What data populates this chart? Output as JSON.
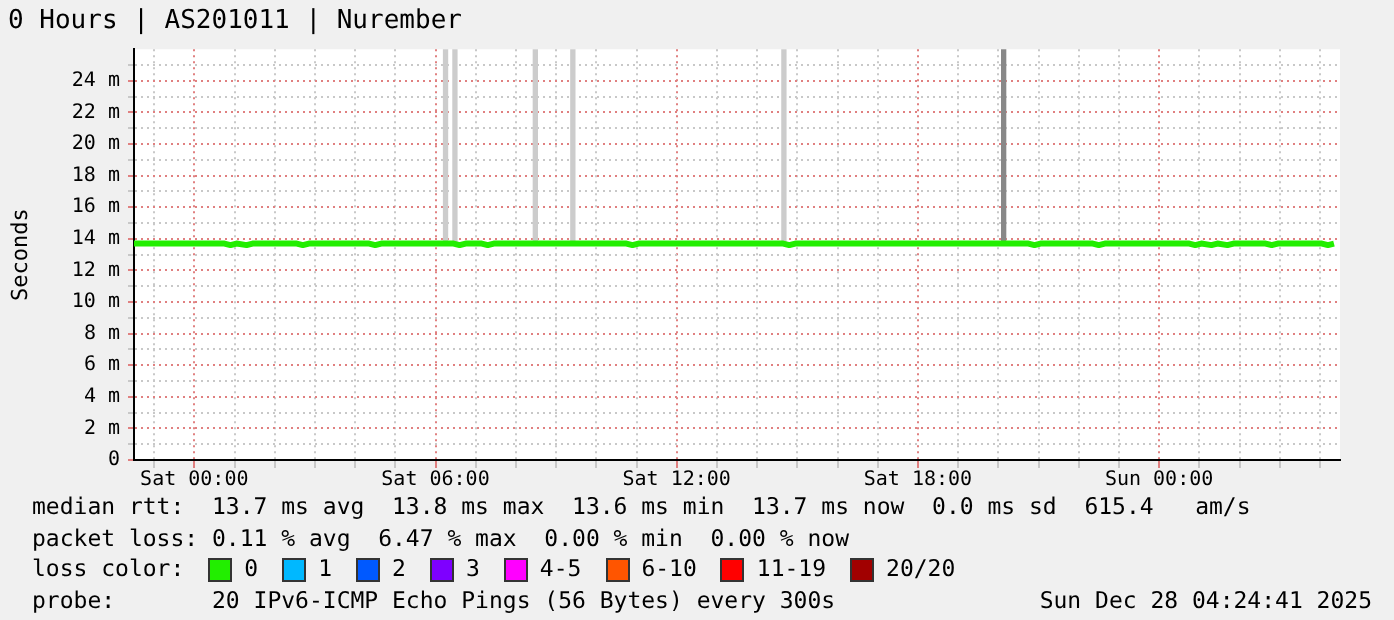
{
  "chart_data": {
    "type": "line",
    "title": "0 Hours | AS201011 | Nurember",
    "ylabel": "Seconds",
    "xlim": [
      "2025-12-26T22:30",
      "2025-12-28T04:30"
    ],
    "xticks": [
      {
        "value": "2025-12-26T23:00",
        "label": null
      },
      {
        "value": "2025-12-27T00:00",
        "label": "Sat 00:00"
      },
      {
        "value": "2025-12-27T01:00",
        "label": null
      },
      {
        "value": "2025-12-27T02:00",
        "label": null
      },
      {
        "value": "2025-12-27T03:00",
        "label": null
      },
      {
        "value": "2025-12-27T04:00",
        "label": null
      },
      {
        "value": "2025-12-27T05:00",
        "label": null
      },
      {
        "value": "2025-12-27T06:00",
        "label": "Sat 06:00"
      },
      {
        "value": "2025-12-27T07:00",
        "label": null
      },
      {
        "value": "2025-12-27T08:00",
        "label": null
      },
      {
        "value": "2025-12-27T09:00",
        "label": null
      },
      {
        "value": "2025-12-27T10:00",
        "label": null
      },
      {
        "value": "2025-12-27T11:00",
        "label": null
      },
      {
        "value": "2025-12-27T12:00",
        "label": "Sat 12:00"
      },
      {
        "value": "2025-12-27T13:00",
        "label": null
      },
      {
        "value": "2025-12-27T14:00",
        "label": null
      },
      {
        "value": "2025-12-27T15:00",
        "label": null
      },
      {
        "value": "2025-12-27T16:00",
        "label": null
      },
      {
        "value": "2025-12-27T17:00",
        "label": null
      },
      {
        "value": "2025-12-27T18:00",
        "label": "Sat 18:00"
      },
      {
        "value": "2025-12-27T19:00",
        "label": null
      },
      {
        "value": "2025-12-27T20:00",
        "label": null
      },
      {
        "value": "2025-12-27T21:00",
        "label": null
      },
      {
        "value": "2025-12-27T22:00",
        "label": null
      },
      {
        "value": "2025-12-27T23:00",
        "label": null
      },
      {
        "value": "2025-12-28T00:00",
        "label": "Sun 00:00"
      },
      {
        "value": "2025-12-28T01:00",
        "label": null
      },
      {
        "value": "2025-12-28T02:00",
        "label": null
      },
      {
        "value": "2025-12-28T03:00",
        "label": null
      },
      {
        "value": "2025-12-28T04:00",
        "label": null
      }
    ],
    "ylim": [
      0,
      26
    ],
    "yticks": [
      0,
      {
        "value": 1,
        "label": null
      },
      {
        "value": 2,
        "label": "2 m"
      },
      {
        "value": 3,
        "label": null
      },
      {
        "value": 4,
        "label": "4 m"
      },
      {
        "value": 5,
        "label": null
      },
      {
        "value": 6,
        "label": "6 m"
      },
      {
        "value": 7,
        "label": null
      },
      {
        "value": 8,
        "label": "8 m"
      },
      {
        "value": 9,
        "label": null
      },
      {
        "value": 10,
        "label": "10 m"
      },
      {
        "value": 11,
        "label": null
      },
      {
        "value": 12,
        "label": "12 m"
      },
      {
        "value": 13,
        "label": null
      },
      {
        "value": 14,
        "label": "14 m"
      },
      {
        "value": 15,
        "label": null
      },
      {
        "value": 16,
        "label": "16 m"
      },
      {
        "value": 17,
        "label": null
      },
      {
        "value": 18,
        "label": "18 m"
      },
      {
        "value": 19,
        "label": null
      },
      {
        "value": 20,
        "label": "20 m"
      },
      {
        "value": 21,
        "label": null
      },
      {
        "value": 22,
        "label": "22 m"
      },
      {
        "value": 23,
        "label": null
      },
      {
        "value": 24,
        "label": "24 m"
      },
      {
        "value": 25,
        "label": null
      }
    ],
    "grid": true,
    "legend": "bottom",
    "line_style": "solid",
    "marker": "none",
    "series": [
      {
        "type": "bar",
        "colors": [
          "#cccccc",
          "#cccccc",
          "#cccccc",
          "#cccccc",
          "#cccccc",
          "#888888"
        ],
        "x": [
          "2025-12-27T06:15",
          "2025-12-27T06:29",
          "2025-12-27T08:29",
          "2025-12-27T09:25",
          "2025-12-27T14:40",
          "2025-12-27T20:08"
        ],
        "base": [
          13.8,
          13.8,
          13.8,
          13.8,
          13.8,
          13.8
        ],
        "values": [
          12.2,
          12.2,
          12.2,
          12.2,
          12.2,
          12.2
        ]
      },
      {
        "name": "0",
        "color": "#22ee00",
        "x": [
          "2025-12-26T22:30",
          "2025-12-27T00:45",
          "2025-12-27T00:54",
          "2025-12-27T01:03",
          "2025-12-27T01:18",
          "2025-12-27T01:27",
          "2025-12-27T02:33",
          "2025-12-27T02:42",
          "2025-12-27T02:51",
          "2025-12-27T04:21",
          "2025-12-27T04:30",
          "2025-12-27T04:39",
          "2025-12-27T06:27",
          "2025-12-27T06:36",
          "2025-12-27T06:45",
          "2025-12-27T07:09",
          "2025-12-27T07:18",
          "2025-12-27T07:27",
          "2025-12-27T10:45",
          "2025-12-27T10:54",
          "2025-12-27T11:03",
          "2025-12-27T14:39",
          "2025-12-27T14:48",
          "2025-12-27T14:57",
          "2025-12-27T20:45",
          "2025-12-27T20:54",
          "2025-12-27T21:03",
          "2025-12-27T22:21",
          "2025-12-27T22:30",
          "2025-12-27T22:39",
          "2025-12-28T00:45",
          "2025-12-28T00:54",
          "2025-12-28T01:03",
          "2025-12-28T01:18",
          "2025-12-28T01:27",
          "2025-12-28T01:42",
          "2025-12-28T01:51",
          "2025-12-28T02:39",
          "2025-12-28T02:48",
          "2025-12-28T02:57",
          "2025-12-28T04:03",
          "2025-12-28T04:12",
          "2025-12-28T04:21"
        ],
        "values": [
          13.7,
          13.7,
          13.6,
          13.7,
          13.6,
          13.7,
          13.7,
          13.6,
          13.7,
          13.7,
          13.6,
          13.7,
          13.7,
          13.6,
          13.7,
          13.7,
          13.6,
          13.7,
          13.7,
          13.6,
          13.7,
          13.7,
          13.6,
          13.7,
          13.7,
          13.6,
          13.7,
          13.7,
          13.6,
          13.7,
          13.7,
          13.6,
          13.7,
          13.6,
          13.7,
          13.6,
          13.7,
          13.7,
          13.6,
          13.7,
          13.7,
          13.6,
          13.7
        ]
      },
      {
        "name": "1",
        "color": "#00b8ff"
      },
      {
        "name": "2",
        "color": "#0059ff"
      },
      {
        "name": "3",
        "color": "#7e00ff"
      },
      {
        "name": "4-5",
        "color": "#ff00ff"
      },
      {
        "name": "6-10",
        "color": "#ff5500"
      },
      {
        "name": "11-19",
        "color": "#ff0000"
      },
      {
        "name": "20/20",
        "color": "#a10000"
      }
    ],
    "annotations": [
      "median rtt:  13.7 ms avg  13.8 ms max  13.6 ms min  13.7 ms now  0.0 ms sd  615.4   am/s",
      "packet loss: 0.11 % avg  6.47 % max  0.00 % min  0.00 % now",
      "loss color:",
      "probe:       20 IPv6-ICMP Echo Pings (56 Bytes) every 300s",
      "Sun Dec 28 04:24:41 2025"
    ]
  }
}
